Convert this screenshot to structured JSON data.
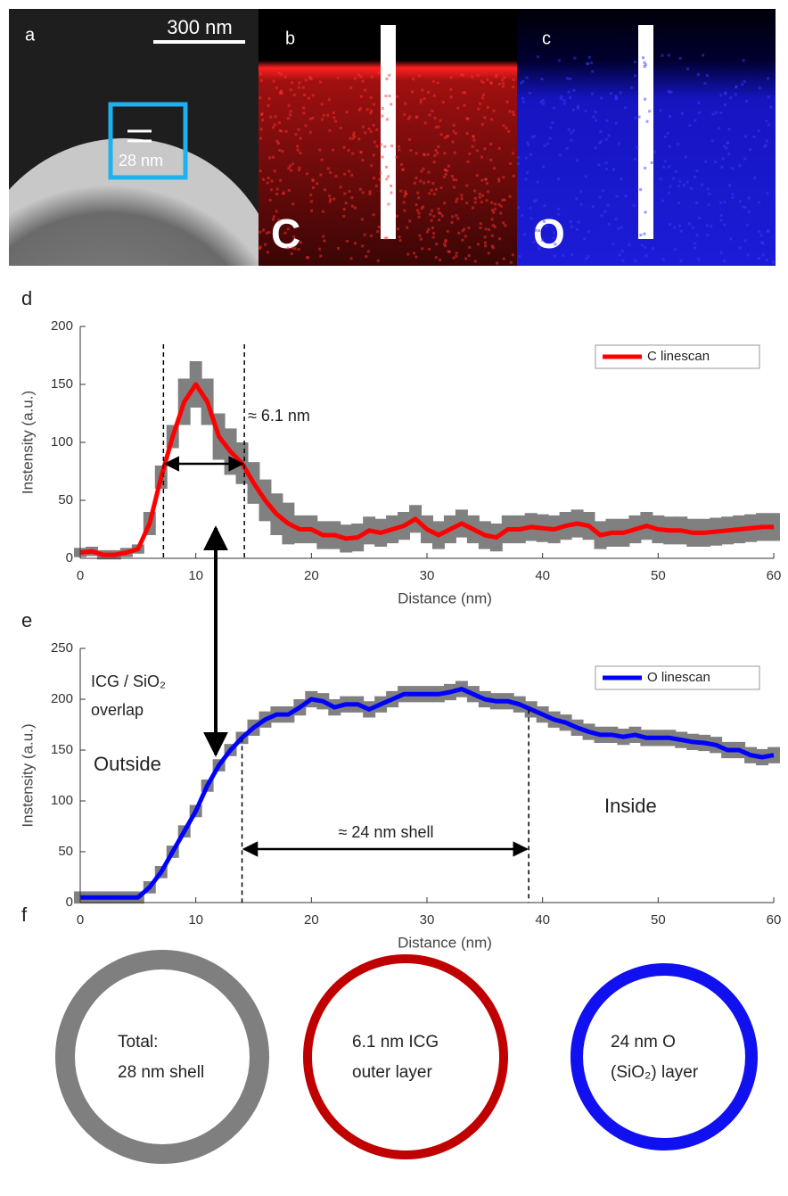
{
  "panels": [
    {
      "label": "a",
      "scale_bar": "300 nm",
      "feature": "28 nm"
    },
    {
      "label": "b",
      "element": "C"
    },
    {
      "label": "c",
      "element": "O"
    }
  ],
  "chart_data": [
    {
      "type": "line",
      "label": "d",
      "xlabel": "Distance (nm)",
      "ylabel": "Instensity (a.u.)",
      "xlim": [
        0,
        60
      ],
      "ylim": [
        0,
        200
      ],
      "xticks": [
        0,
        10,
        20,
        30,
        40,
        50,
        60
      ],
      "yticks": [
        0,
        50,
        100,
        150,
        200
      ],
      "legend": "upper right",
      "band_color": "#808080",
      "x": [
        0,
        1,
        2,
        3,
        4,
        5,
        6,
        7,
        8,
        9,
        10,
        11,
        12,
        13,
        14,
        15,
        16,
        17,
        18,
        19,
        20,
        21,
        22,
        23,
        24,
        25,
        26,
        27,
        28,
        29,
        30,
        31,
        32,
        33,
        34,
        35,
        36,
        37,
        38,
        39,
        40,
        41,
        42,
        43,
        44,
        45,
        46,
        47,
        48,
        49,
        50,
        51,
        52,
        53,
        54,
        55,
        56,
        57,
        58,
        59,
        60
      ],
      "series": [
        {
          "name": "C linescan",
          "color": "#ff0000",
          "values": [
            5,
            6,
            3,
            3,
            5,
            8,
            30,
            70,
            105,
            135,
            150,
            135,
            105,
            92,
            82,
            65,
            50,
            38,
            30,
            25,
            25,
            20,
            20,
            17,
            18,
            24,
            22,
            25,
            28,
            34,
            25,
            20,
            25,
            30,
            25,
            20,
            18,
            25,
            25,
            27,
            26,
            25,
            28,
            30,
            28,
            20,
            22,
            22,
            25,
            28,
            25,
            24,
            24,
            22,
            22,
            23,
            24,
            25,
            26,
            27,
            27
          ],
          "error": [
            4,
            4,
            4,
            4,
            4,
            4,
            10,
            10,
            10,
            20,
            20,
            20,
            20,
            20,
            18,
            18,
            18,
            18,
            18,
            12,
            12,
            12,
            12,
            12,
            12,
            12,
            12,
            12,
            12,
            12,
            12,
            12,
            12,
            12,
            12,
            12,
            12,
            12,
            12,
            12,
            12,
            12,
            12,
            12,
            12,
            12,
            12,
            12,
            12,
            12,
            12,
            12,
            12,
            12,
            12,
            12,
            12,
            12,
            12,
            12,
            12
          ]
        }
      ],
      "vlines": [
        7.2,
        14.2
      ],
      "annotations": [
        "≈ 6.1 nm"
      ]
    },
    {
      "type": "line",
      "label": "e",
      "xlabel": "Distance (nm)",
      "ylabel": "Instensity (a.u.)",
      "xlim": [
        0,
        60
      ],
      "ylim": [
        0,
        250
      ],
      "xticks": [
        0,
        10,
        20,
        30,
        40,
        50,
        60
      ],
      "yticks": [
        0,
        50,
        100,
        150,
        200,
        250
      ],
      "legend": "upper right",
      "band_color": "#808080",
      "x": [
        0,
        1,
        2,
        3,
        4,
        5,
        6,
        7,
        8,
        9,
        10,
        11,
        12,
        13,
        14,
        15,
        16,
        17,
        18,
        19,
        20,
        21,
        22,
        23,
        24,
        25,
        26,
        27,
        28,
        29,
        30,
        31,
        32,
        33,
        34,
        35,
        36,
        37,
        38,
        39,
        40,
        41,
        42,
        43,
        44,
        45,
        46,
        47,
        48,
        49,
        50,
        51,
        52,
        53,
        54,
        55,
        56,
        57,
        58,
        59,
        60
      ],
      "series": [
        {
          "name": "O linescan",
          "color": "#0000ff",
          "values": [
            5,
            5,
            5,
            5,
            5,
            5,
            15,
            30,
            50,
            70,
            90,
            115,
            135,
            150,
            162,
            172,
            180,
            185,
            185,
            192,
            200,
            198,
            192,
            195,
            195,
            190,
            195,
            200,
            205,
            205,
            205,
            205,
            207,
            210,
            205,
            200,
            198,
            198,
            195,
            190,
            185,
            180,
            177,
            172,
            168,
            165,
            165,
            163,
            165,
            162,
            162,
            162,
            160,
            158,
            157,
            155,
            150,
            150,
            145,
            143,
            145
          ],
          "error": [
            6,
            6,
            6,
            6,
            6,
            6,
            6,
            6,
            6,
            6,
            6,
            6,
            6,
            6,
            6,
            8,
            8,
            8,
            8,
            8,
            8,
            8,
            8,
            8,
            8,
            8,
            8,
            8,
            8,
            8,
            8,
            8,
            8,
            8,
            8,
            8,
            8,
            8,
            8,
            8,
            8,
            8,
            8,
            8,
            8,
            8,
            8,
            8,
            8,
            8,
            8,
            8,
            8,
            8,
            8,
            8,
            8,
            8,
            8,
            8,
            8
          ]
        }
      ],
      "vlines": [
        14,
        38.8
      ],
      "annotations": [
        "ICG / SiO₂",
        "overlap",
        "Outside",
        "Inside",
        "≈ 24 nm shell"
      ]
    }
  ],
  "rings": {
    "label": "f",
    "items": [
      {
        "lines": [
          "Total:",
          "28 nm shell"
        ],
        "color": "#7f7f7f"
      },
      {
        "lines": [
          "6.1 nm ICG",
          "outer layer"
        ],
        "color": "#c00000"
      },
      {
        "lines": [
          "24 nm O",
          "(SiO₂) layer"
        ],
        "color": "#1010f0"
      }
    ]
  }
}
